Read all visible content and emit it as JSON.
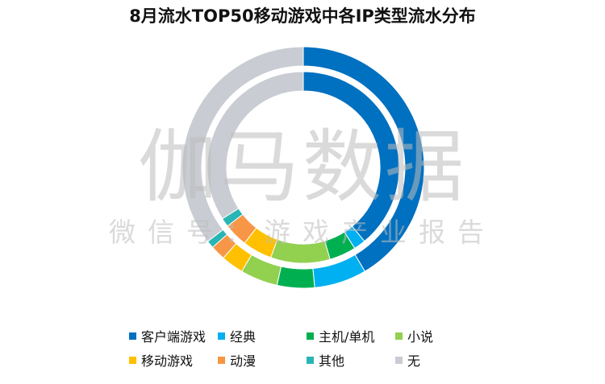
{
  "chart_data": {
    "type": "pie",
    "title": "8月流水TOP50移动游戏中各IP类型流水分布",
    "watermark": {
      "main": "伽马数据",
      "sub": "微信号：游戏产业报告"
    },
    "categories": [
      "客户端游戏",
      "经典",
      "主机/单机",
      "小说",
      "移动游戏",
      "动漫",
      "其他",
      "无"
    ],
    "colors": [
      "#0070c0",
      "#00b0f0",
      "#00b050",
      "#92d050",
      "#ffc000",
      "#f79646",
      "#2ab5b5",
      "#c9ccd3"
    ],
    "series": [
      {
        "ring": "outer",
        "values": [
          41.5,
          7.0,
          5.0,
          5.0,
          3.0,
          2.0,
          1.0,
          35.5
        ]
      },
      {
        "ring": "inner",
        "values": [
          39.0,
          2.0,
          4.5,
          10.0,
          5.0,
          4.0,
          1.5,
          34.0
        ]
      }
    ],
    "legend_position": "bottom"
  }
}
